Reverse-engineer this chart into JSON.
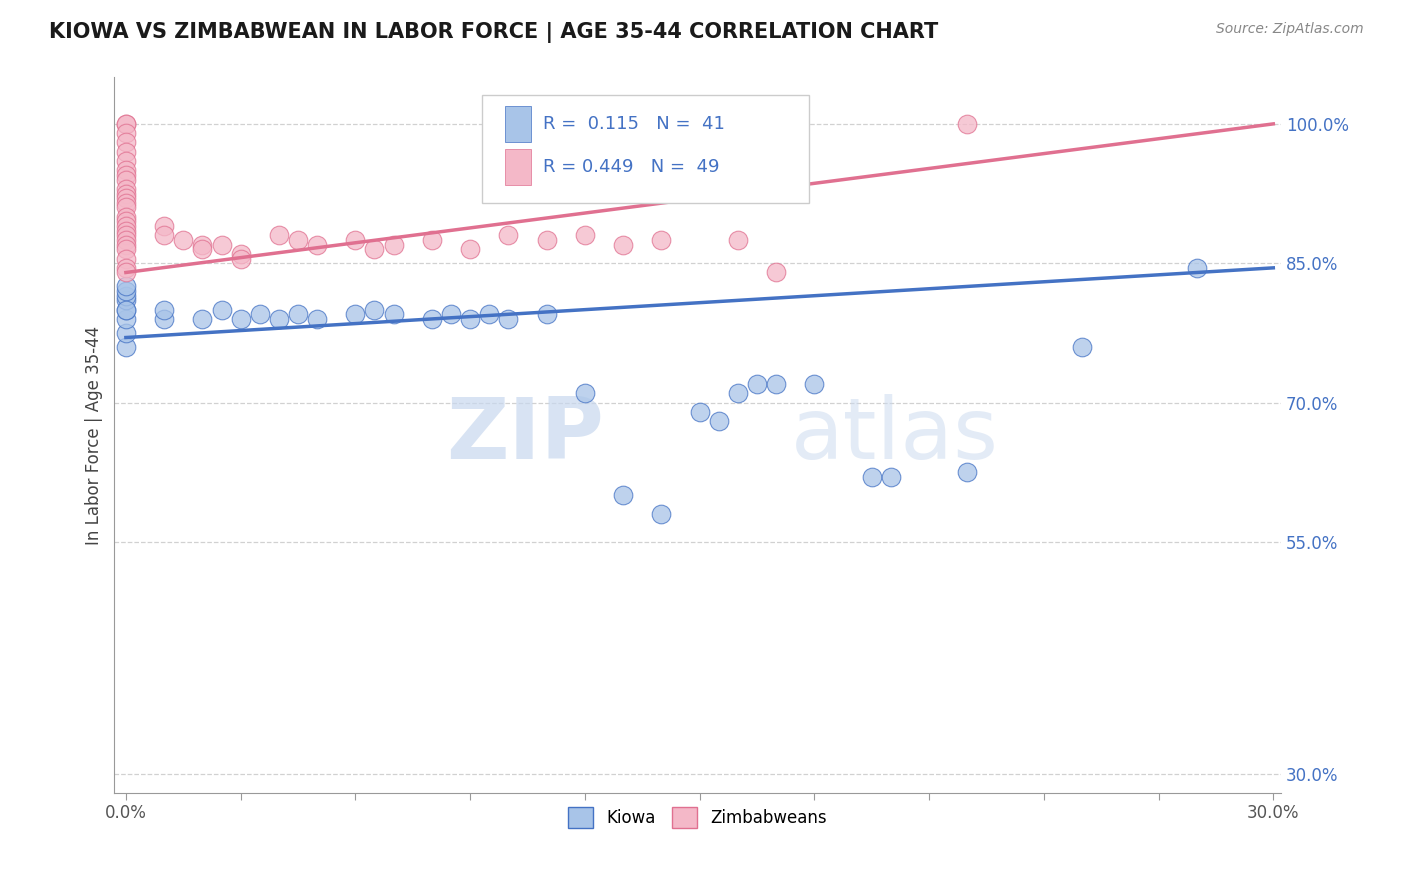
{
  "title": "KIOWA VS ZIMBABWEAN IN LABOR FORCE | AGE 35-44 CORRELATION CHART",
  "source_text": "Source: ZipAtlas.com",
  "ylabel": "In Labor Force | Age 35-44",
  "blue_color": "#a8c4e8",
  "pink_color": "#f4b8c8",
  "blue_line_color": "#4472c4",
  "pink_line_color": "#e07090",
  "R_blue": 0.115,
  "N_blue": 41,
  "R_pink": 0.449,
  "N_pink": 49,
  "watermark_zip": "ZIP",
  "watermark_atlas": "atlas",
  "blue_x": [
    0.0,
    0.0,
    0.0,
    0.0,
    0.0,
    0.0,
    0.0,
    0.0,
    0.0,
    0.01,
    0.01,
    0.02,
    0.025,
    0.03,
    0.035,
    0.04,
    0.045,
    0.05,
    0.06,
    0.065,
    0.07,
    0.08,
    0.085,
    0.09,
    0.095,
    0.1,
    0.11,
    0.12,
    0.13,
    0.14,
    0.15,
    0.155,
    0.16,
    0.165,
    0.17,
    0.18,
    0.195,
    0.2,
    0.22,
    0.25,
    0.28
  ],
  "blue_y": [
    0.76,
    0.775,
    0.79,
    0.8,
    0.81,
    0.815,
    0.82,
    0.825,
    0.8,
    0.79,
    0.8,
    0.79,
    0.8,
    0.79,
    0.795,
    0.79,
    0.795,
    0.79,
    0.795,
    0.8,
    0.795,
    0.79,
    0.795,
    0.79,
    0.795,
    0.79,
    0.795,
    0.71,
    0.6,
    0.58,
    0.69,
    0.68,
    0.71,
    0.72,
    0.72,
    0.72,
    0.62,
    0.62,
    0.625,
    0.76,
    0.845
  ],
  "pink_x": [
    0.0,
    0.0,
    0.0,
    0.0,
    0.0,
    0.0,
    0.0,
    0.0,
    0.0,
    0.0,
    0.0,
    0.0,
    0.0,
    0.0,
    0.0,
    0.0,
    0.0,
    0.0,
    0.0,
    0.0,
    0.0,
    0.0,
    0.0,
    0.0,
    0.0,
    0.01,
    0.01,
    0.015,
    0.02,
    0.02,
    0.025,
    0.03,
    0.03,
    0.04,
    0.045,
    0.05,
    0.06,
    0.065,
    0.07,
    0.08,
    0.09,
    0.1,
    0.11,
    0.12,
    0.13,
    0.14,
    0.16,
    0.17,
    0.22
  ],
  "pink_y": [
    1.0,
    1.0,
    0.99,
    0.98,
    0.97,
    0.96,
    0.95,
    0.945,
    0.94,
    0.93,
    0.925,
    0.92,
    0.915,
    0.91,
    0.9,
    0.895,
    0.89,
    0.885,
    0.88,
    0.875,
    0.87,
    0.865,
    0.855,
    0.845,
    0.84,
    0.89,
    0.88,
    0.875,
    0.87,
    0.865,
    0.87,
    0.86,
    0.855,
    0.88,
    0.875,
    0.87,
    0.875,
    0.865,
    0.87,
    0.875,
    0.865,
    0.88,
    0.875,
    0.88,
    0.87,
    0.875,
    0.875,
    0.84,
    1.0
  ]
}
